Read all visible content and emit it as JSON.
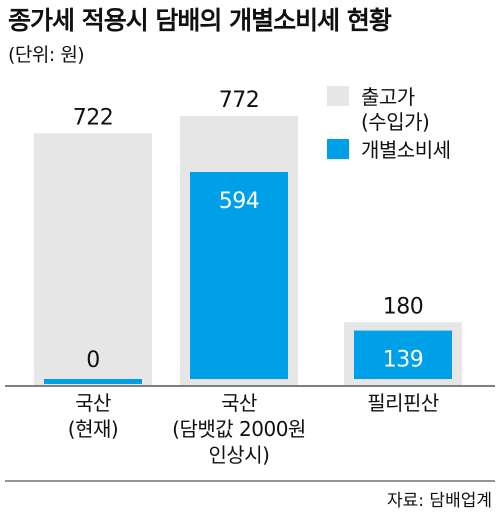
{
  "title": "종가세 적용시 담배의 개별소비세 현황",
  "unit_label": "(단위: 원)",
  "source": "자료: 담배업계",
  "colors": {
    "total": "#e6e6e6",
    "tax": "#00a0e9",
    "axis": "#555555",
    "text": "#111111",
    "bar_label_light": "#ffffff"
  },
  "chart_data": {
    "type": "bar",
    "title": "종가세 적용시 담배의 개별소비세 현황",
    "ylabel": "",
    "ylim": [
      0,
      850
    ],
    "categories": [
      [
        "국산",
        "(현재)"
      ],
      [
        "국산",
        "(담뱃값 2000원",
        "인상시)"
      ],
      [
        "필리핀산"
      ]
    ],
    "series": [
      {
        "name": "출고가 (수입가)",
        "values": [
          722,
          772,
          180
        ]
      },
      {
        "name": "개별소비세",
        "values": [
          0,
          594,
          139
        ]
      }
    ],
    "legend": {
      "position": "top-right",
      "entries": [
        {
          "lines": [
            "출고가",
            "(수입가)"
          ]
        },
        {
          "lines": [
            "개별소비세"
          ]
        }
      ]
    }
  }
}
